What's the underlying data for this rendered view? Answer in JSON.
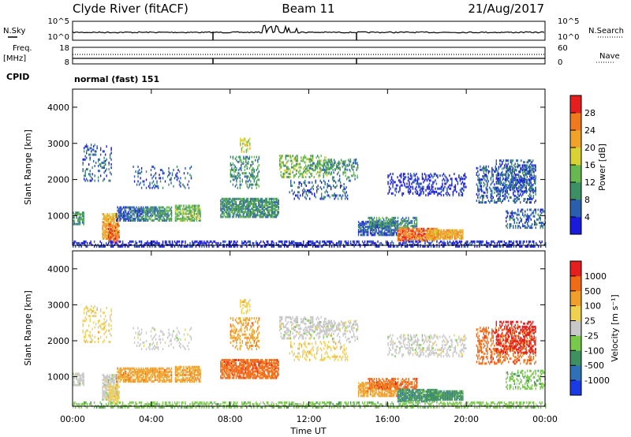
{
  "header": {
    "station": "Clyde River (fitACF)",
    "beam": "Beam 11",
    "date": "21/Aug/2017"
  },
  "top_panels": {
    "nsky_label": "N.Sky",
    "nsky_ticks": [
      "10^5",
      "10^0"
    ],
    "nsearch_label": "N.Search",
    "nsearch_ticks": [
      "10^5",
      "10^0"
    ],
    "freq_label_1": "Freq.",
    "freq_label_2": "[MHz]",
    "freq_ticks": [
      "18",
      "8"
    ],
    "nave_label": "Nave",
    "nave_ticks": [
      "60",
      "0"
    ],
    "cpid_label": "CPID",
    "cpid_value": "normal (fast) 151"
  },
  "chart_data": [
    {
      "type": "heatmap",
      "name": "power",
      "ylabel": "Slant Range [km]",
      "ylim": [
        180,
        4500
      ],
      "yticks": [
        "1000",
        "2000",
        "3000",
        "4000"
      ],
      "colorbar_label": "Power [dB]",
      "colorbar_ticks": [
        "4",
        "8",
        "12",
        "16",
        "20",
        "24",
        "28"
      ],
      "colors": [
        "#1a1adc",
        "#2a5fb0",
        "#3d8f64",
        "#68b850",
        "#d8d234",
        "#f0a22a",
        "#f0781e",
        "#e61e1e"
      ]
    },
    {
      "type": "heatmap",
      "name": "velocity",
      "ylabel": "Slant Range [km]",
      "ylim": [
        180,
        4500
      ],
      "yticks": [
        "1000",
        "2000",
        "3000",
        "4000"
      ],
      "colorbar_label": "Velocity [m s⁻¹]",
      "colorbar_ticks": [
        "1000",
        "500",
        "100",
        "25",
        "-25",
        "-100",
        "-500",
        "-1000"
      ],
      "colors": [
        "#1a3ae6",
        "#3070b8",
        "#3e9060",
        "#78c84a",
        "#c8c8c8",
        "#f0d050",
        "#f0a02a",
        "#f06a18",
        "#e61e1e"
      ]
    }
  ],
  "xaxis": {
    "label": "Time UT",
    "ticks": [
      "00:00",
      "04:00",
      "08:00",
      "12:00",
      "16:00",
      "20:00",
      "00:00"
    ]
  }
}
